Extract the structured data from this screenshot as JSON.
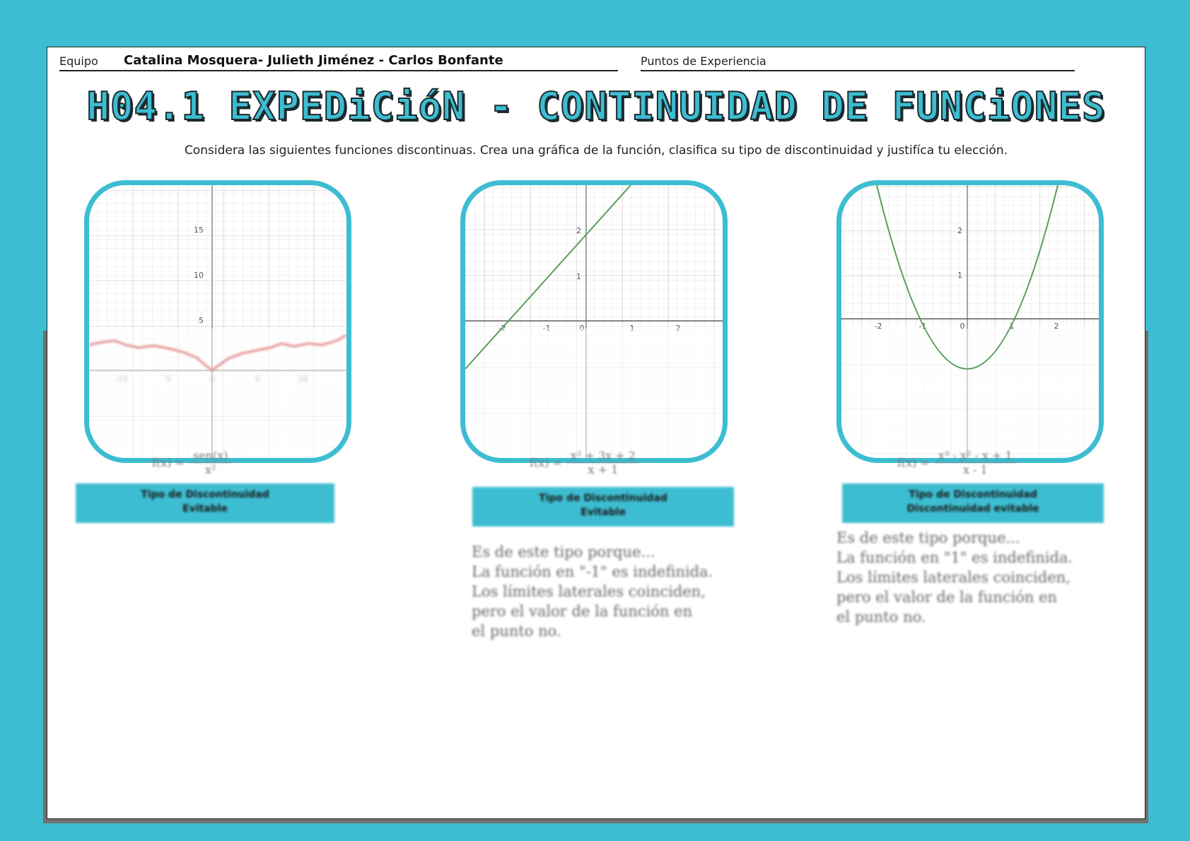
{
  "header": {
    "team_label": "Equipo",
    "team_names": "Catalina Mosquera- Julieth Jiménez - Carlos Bonfante",
    "xp_label": "Puntos de Experiencia"
  },
  "title": "H04.1 EXPEDiCióN - CONTINUIDAD DE FUNCiONES",
  "instructions": "Considera las siguientes funciones discontinuas. Crea una gráfica de la función, clasifica su tipo de discontinuidad y justifíca tu elección.",
  "panels": [
    {
      "graph": {
        "x_ticks": [
          "-10",
          "-5",
          "0",
          "5",
          "10"
        ],
        "y_ticks": [
          "15",
          "10",
          "5"
        ],
        "curve_color": "#e07b7b"
      },
      "formula_lhs": "f(x) =",
      "formula_num": "sen(x)",
      "formula_den": "x²",
      "type_line1": "Tipo de Discontinuidad",
      "type_line2": "Evitable",
      "explanation": []
    },
    {
      "graph": {
        "x_ticks": [
          "-2",
          "-1",
          "0",
          "1",
          "2"
        ],
        "y_ticks": [
          "2",
          "1"
        ],
        "curve_color": "#5a9e5a"
      },
      "formula_lhs": "f(x) =",
      "formula_num": "x² + 3x + 2",
      "formula_den": "x + 1",
      "type_line1": "Tipo de Discontinuidad",
      "type_line2": "Evitable",
      "explanation": [
        "Es de este tipo porque...",
        "La función en \"-1\" es indefinida.",
        "Los límites laterales coinciden,",
        "pero el valor de la función en",
        "el punto no."
      ]
    },
    {
      "graph": {
        "x_ticks": [
          "-2",
          "-1",
          "0",
          "1",
          "2"
        ],
        "y_ticks": [
          "2",
          "1"
        ],
        "curve_color": "#5a9e5a"
      },
      "formula_lhs": "f(x) =",
      "formula_num": "x³ - x² - x + 1",
      "formula_den": "x - 1",
      "type_line1": "Tipo de Discontinuidad",
      "type_line2": "Discontinuidad evitable",
      "explanation": [
        "Es de este tipo porque...",
        "La función en \"1\" es indefinida.",
        "Los límites laterales coinciden,",
        "pero el valor de la función en",
        "el punto no."
      ]
    }
  ]
}
